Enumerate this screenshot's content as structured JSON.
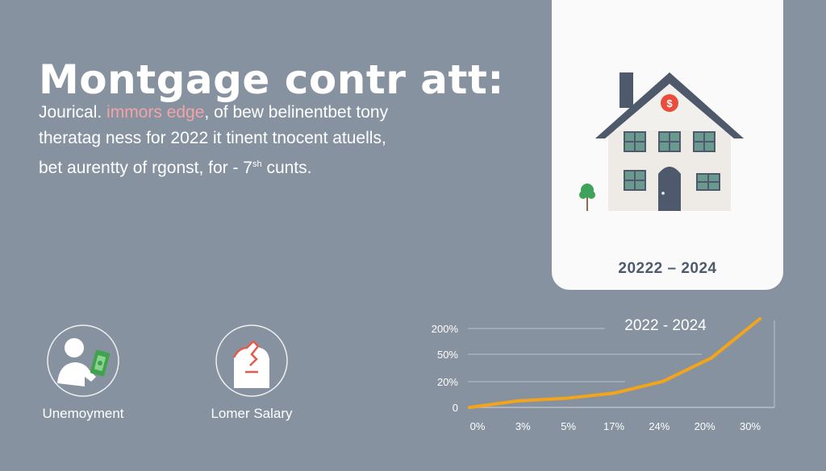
{
  "header": {
    "title": "Montgage contr att:",
    "subtitle_line1_a": "Jourical. ",
    "subtitle_line1_accent": "immors edge",
    "subtitle_line1_b": ", of bew belinentbet tony",
    "subtitle_line2": "theratag ness for 2022 it tinent tnocent atuells,",
    "subtitle_line3_a": "bet aurentty of rgonst, for - 7",
    "subtitle_line3_sup": "sh",
    "subtitle_line3_b": " cunts."
  },
  "card": {
    "years": "20222 – 2024"
  },
  "icons": [
    {
      "name": "unemployment",
      "label": "Unemoyment",
      "icon": "person-money-icon"
    },
    {
      "name": "salary",
      "label": "Lomer Salary",
      "icon": "person-pay-cut-icon"
    }
  ],
  "colors": {
    "background": "#8792a0",
    "line": "#f2a51a",
    "house_roof": "#4e5a6b",
    "accent": "#f3a3a6"
  },
  "chart_data": {
    "type": "line",
    "title": "2022 - 2024",
    "y_ticks": [
      "200%",
      "50%",
      "20%",
      "0"
    ],
    "x_ticks": [
      "0%",
      "3%",
      "5%",
      "17%",
      "24%",
      "20%",
      "30%"
    ],
    "series": [
      {
        "values": [
          0,
          0.25,
          0.35,
          0.55,
          1.0,
          1.9,
          3.4
        ]
      }
    ],
    "grid": true,
    "legend": "none"
  }
}
